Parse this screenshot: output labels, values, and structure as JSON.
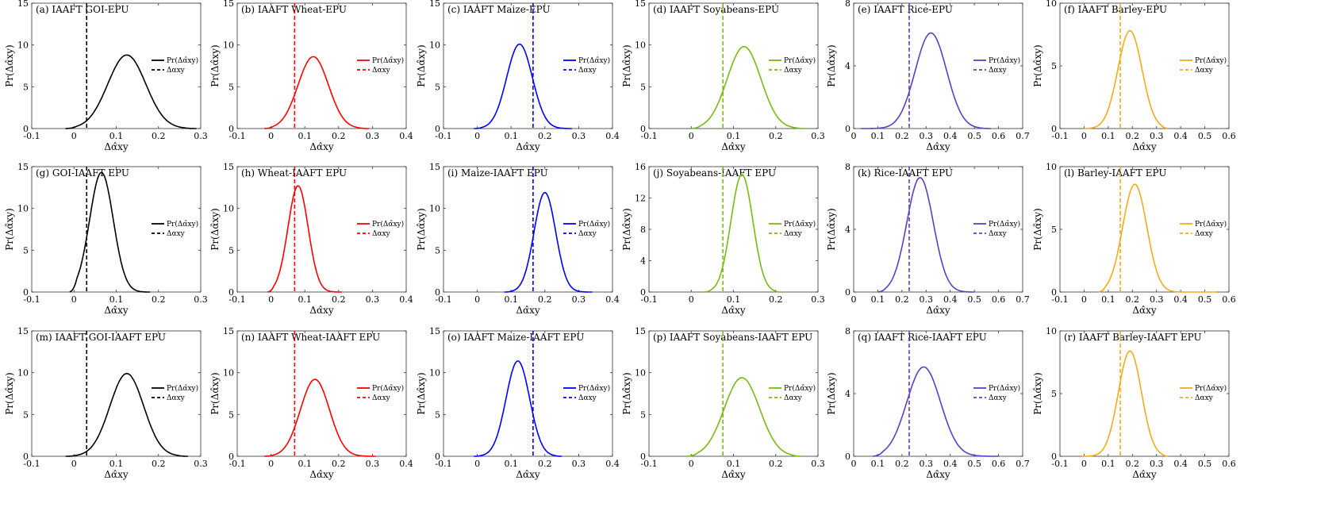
{
  "figure": {
    "xlabel": "Δα̂xy",
    "ylabel": "Pr(Δα̂xy)",
    "legend": {
      "pdf_label": "Pr(Δα̂xy)",
      "line_label": "Δαxy"
    }
  },
  "chart_data": [
    {
      "type": "line",
      "panel": "a",
      "title": "(a) IAAFT GOI-EPU",
      "color": "#000000",
      "xlim": [
        -0.1,
        0.3
      ],
      "xticks": [
        "-0.1",
        "0",
        "0.1",
        "0.2",
        "0.3"
      ],
      "ylim": [
        0,
        15
      ],
      "yticks": [
        "0",
        "5",
        "10",
        "15"
      ],
      "observed": 0.03,
      "peak_x": 0.125,
      "peak_y": 8.8,
      "sd": 0.045,
      "support": [
        -0.02,
        0.29
      ]
    },
    {
      "type": "line",
      "panel": "b",
      "title": "(b) IAAFT Wheat-EPU",
      "color": "#ff0000",
      "xlim": [
        -0.1,
        0.4
      ],
      "xticks": [
        "-0.1",
        "0",
        "0.1",
        "0.2",
        "0.3",
        "0.4"
      ],
      "ylim": [
        0,
        15
      ],
      "yticks": [
        "0",
        "5",
        "10",
        "15"
      ],
      "observed": 0.07,
      "peak_x": 0.125,
      "peak_y": 8.6,
      "sd": 0.045,
      "support": [
        -0.02,
        0.29
      ]
    },
    {
      "type": "line",
      "panel": "c",
      "title": "(c) IAAFT Maize-EPU",
      "color": "#0000ff",
      "xlim": [
        -0.1,
        0.4
      ],
      "xticks": [
        "-0.1",
        "0",
        "0.1",
        "0.2",
        "0.3",
        "0.4"
      ],
      "ylim": [
        0,
        15
      ],
      "yticks": [
        "0",
        "5",
        "10",
        "15"
      ],
      "observed": 0.165,
      "peak_x": 0.125,
      "peak_y": 10.1,
      "sd": 0.038,
      "support": [
        -0.01,
        0.28
      ]
    },
    {
      "type": "line",
      "panel": "d",
      "title": "(d) IAAFT Soyabeans-EPU",
      "color": "#77bb11",
      "xlim": [
        -0.1,
        0.3
      ],
      "xticks": [
        "-0.1",
        "0",
        "0.1",
        "0.2",
        "0.3"
      ],
      "ylim": [
        0,
        15
      ],
      "yticks": [
        "0",
        "5",
        "10",
        "15"
      ],
      "observed": 0.075,
      "peak_x": 0.125,
      "peak_y": 9.8,
      "sd": 0.04,
      "support": [
        0.0,
        0.27
      ]
    },
    {
      "type": "line",
      "panel": "e",
      "title": "(e) IAAFT Rice-EPU",
      "color": "#5b3fc4",
      "xlim": [
        0,
        0.7
      ],
      "xticks": [
        "0",
        "0.1",
        "0.2",
        "0.3",
        "0.4",
        "0.5",
        "0.6",
        "0.7"
      ],
      "ylim": [
        0,
        8
      ],
      "yticks": [
        "0",
        "4",
        "8"
      ],
      "observed": 0.23,
      "peak_x": 0.32,
      "peak_y": 6.1,
      "sd": 0.065,
      "support": [
        0.03,
        0.57
      ]
    },
    {
      "type": "line",
      "panel": "f",
      "title": "(f) IAAFT Barley-EPU",
      "color": "#f0ac1a",
      "xlim": [
        -0.1,
        0.6
      ],
      "xticks": [
        "-0.1",
        "0",
        "0.1",
        "0.2",
        "0.3",
        "0.4",
        "0.5",
        "0.6"
      ],
      "ylim": [
        0,
        10
      ],
      "yticks": [
        "0",
        "5",
        "10"
      ],
      "observed": 0.15,
      "peak_x": 0.19,
      "peak_y": 7.8,
      "sd": 0.05,
      "support": [
        0.0,
        0.35
      ]
    },
    {
      "type": "line",
      "panel": "g",
      "title": "(g) GOI-IAAFT EPU",
      "color": "#000000",
      "xlim": [
        -0.1,
        0.3
      ],
      "xticks": [
        "-0.1",
        "0",
        "0.1",
        "0.2",
        "0.3"
      ],
      "ylim": [
        0,
        15
      ],
      "yticks": [
        "0",
        "5",
        "10",
        "15"
      ],
      "observed": 0.03,
      "peak_x": 0.065,
      "peak_y": 14.3,
      "sd": 0.028,
      "support": [
        -0.01,
        0.18
      ]
    },
    {
      "type": "line",
      "panel": "h",
      "title": "(h) Wheat-IAAFT EPU",
      "color": "#ff0000",
      "xlim": [
        -0.1,
        0.4
      ],
      "xticks": [
        "-0.1",
        "0",
        "0.1",
        "0.2",
        "0.3",
        "0.4"
      ],
      "ylim": [
        0,
        15
      ],
      "yticks": [
        "0",
        "5",
        "10",
        "15"
      ],
      "observed": 0.07,
      "peak_x": 0.08,
      "peak_y": 12.7,
      "sd": 0.03,
      "support": [
        -0.01,
        0.21
      ]
    },
    {
      "type": "line",
      "panel": "i",
      "title": "(i) Maize-IAAFT EPU",
      "color": "#0000ff",
      "xlim": [
        -0.1,
        0.4
      ],
      "xticks": [
        "-0.1",
        "0",
        "0.1",
        "0.2",
        "0.3",
        "0.4"
      ],
      "ylim": [
        0,
        15
      ],
      "yticks": [
        "0",
        "5",
        "10",
        "15"
      ],
      "observed": 0.165,
      "peak_x": 0.2,
      "peak_y": 11.9,
      "sd": 0.032,
      "support": [
        0.08,
        0.34
      ]
    },
    {
      "type": "line",
      "panel": "j",
      "title": "(j) Soyabeans-IAAFT EPU",
      "color": "#77bb11",
      "xlim": [
        -0.1,
        0.3
      ],
      "xticks": [
        "-0.1",
        "0",
        "0.1",
        "0.2",
        "0.3"
      ],
      "ylim": [
        0,
        16
      ],
      "yticks": [
        "0",
        "4",
        "8",
        "12",
        "16"
      ],
      "observed": 0.075,
      "peak_x": 0.12,
      "peak_y": 15.0,
      "sd": 0.026,
      "support": [
        0.03,
        0.21
      ]
    },
    {
      "type": "line",
      "panel": "k",
      "title": "(k) Rice-IAAFT EPU",
      "color": "#5b3fc4",
      "xlim": [
        0,
        0.7
      ],
      "xticks": [
        "0",
        "0.1",
        "0.2",
        "0.3",
        "0.4",
        "0.5",
        "0.6",
        "0.7"
      ],
      "ylim": [
        0,
        8
      ],
      "yticks": [
        "0",
        "4",
        "8"
      ],
      "observed": 0.23,
      "peak_x": 0.275,
      "peak_y": 7.3,
      "sd": 0.055,
      "support": [
        0.1,
        0.5
      ]
    },
    {
      "type": "line",
      "panel": "l",
      "title": "(l) Barley-IAAFT EPU",
      "color": "#f0ac1a",
      "xlim": [
        -0.1,
        0.6
      ],
      "xticks": [
        "-0.1",
        "0",
        "0.1",
        "0.2",
        "0.3",
        "0.4",
        "0.5",
        "0.6"
      ],
      "ylim": [
        0,
        10
      ],
      "yticks": [
        "0",
        "5",
        "10"
      ],
      "observed": 0.15,
      "peak_x": 0.21,
      "peak_y": 8.6,
      "sd": 0.05,
      "support": [
        0.06,
        0.55
      ]
    },
    {
      "type": "line",
      "panel": "m",
      "title": "(m) IAAFT GOI-IAAFT EPU",
      "color": "#000000",
      "xlim": [
        -0.1,
        0.3
      ],
      "xticks": [
        "-0.1",
        "0",
        "0.1",
        "0.2",
        "0.3"
      ],
      "ylim": [
        0,
        15
      ],
      "yticks": [
        "0",
        "5",
        "10",
        "15"
      ],
      "observed": 0.03,
      "peak_x": 0.125,
      "peak_y": 9.9,
      "sd": 0.04,
      "support": [
        -0.02,
        0.27
      ]
    },
    {
      "type": "line",
      "panel": "n",
      "title": "(n) IAAFT Wheat-IAAFT EPU",
      "color": "#ff0000",
      "xlim": [
        -0.1,
        0.4
      ],
      "xticks": [
        "-0.1",
        "0",
        "0.1",
        "0.2",
        "0.3",
        "0.4"
      ],
      "ylim": [
        0,
        15
      ],
      "yticks": [
        "0",
        "5",
        "10",
        "15"
      ],
      "observed": 0.07,
      "peak_x": 0.13,
      "peak_y": 9.2,
      "sd": 0.043,
      "support": [
        -0.02,
        0.31
      ]
    },
    {
      "type": "line",
      "panel": "o",
      "title": "(o) IAAFT Maize-IAAFT EPU",
      "color": "#0000ff",
      "xlim": [
        -0.1,
        0.4
      ],
      "xticks": [
        "-0.1",
        "0",
        "0.1",
        "0.2",
        "0.3",
        "0.4"
      ],
      "ylim": [
        0,
        15
      ],
      "yticks": [
        "0",
        "5",
        "10",
        "15"
      ],
      "observed": 0.165,
      "peak_x": 0.12,
      "peak_y": 11.4,
      "sd": 0.035,
      "support": [
        -0.01,
        0.25
      ]
    },
    {
      "type": "line",
      "panel": "p",
      "title": "(p) IAAFT Soyabeans-IAAFT EPU",
      "color": "#77bb11",
      "xlim": [
        -0.1,
        0.3
      ],
      "xticks": [
        "-0.1",
        "0",
        "0.1",
        "0.2",
        "0.3"
      ],
      "ylim": [
        0,
        15
      ],
      "yticks": [
        "0",
        "5",
        "10",
        "15"
      ],
      "observed": 0.075,
      "peak_x": 0.12,
      "peak_y": 9.4,
      "sd": 0.042,
      "support": [
        -0.01,
        0.26
      ]
    },
    {
      "type": "line",
      "panel": "q",
      "title": "(q) IAAFT Rice-IAAFT EPU",
      "color": "#5b3fc4",
      "xlim": [
        0,
        0.7
      ],
      "xticks": [
        "0",
        "0.1",
        "0.2",
        "0.3",
        "0.4",
        "0.5",
        "0.6",
        "0.7"
      ],
      "ylim": [
        0,
        8
      ],
      "yticks": [
        "0",
        "4",
        "8"
      ],
      "observed": 0.23,
      "peak_x": 0.29,
      "peak_y": 5.7,
      "sd": 0.07,
      "support": [
        0.08,
        0.6
      ]
    },
    {
      "type": "line",
      "panel": "r",
      "title": "(r) IAAFT Barley-IAAFT EPU",
      "color": "#f0ac1a",
      "xlim": [
        -0.1,
        0.6
      ],
      "xticks": [
        "-0.1",
        "0",
        "0.1",
        "0.2",
        "0.3",
        "0.4",
        "0.5",
        "0.6"
      ],
      "ylim": [
        0,
        10
      ],
      "yticks": [
        "0",
        "5",
        "10"
      ],
      "observed": 0.15,
      "peak_x": 0.19,
      "peak_y": 8.4,
      "sd": 0.048,
      "support": [
        -0.01,
        0.35
      ]
    }
  ]
}
